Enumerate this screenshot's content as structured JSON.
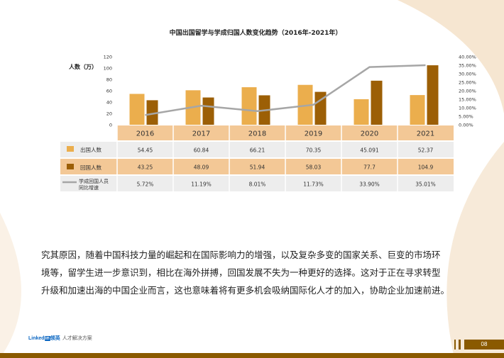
{
  "chart_data": {
    "type": "bar-line",
    "title": "中国出国留学与学成归国人数变化趋势（2016年-2021年）",
    "ylabel": "人数（万）",
    "categories": [
      "2016",
      "2017",
      "2018",
      "2019",
      "2020",
      "2021"
    ],
    "y_left": {
      "ticks": [
        "0",
        "20",
        "40",
        "60",
        "80",
        "100",
        "120"
      ],
      "range": [
        0,
        120
      ]
    },
    "y_right": {
      "ticks": [
        "0.00%",
        "5.00%",
        "10.00%",
        "15.00%",
        "20.00%",
        "25.00%",
        "30.00%",
        "35.00%",
        "40.00%"
      ],
      "range": [
        0,
        40
      ]
    },
    "series": [
      {
        "name": "出国人数",
        "type": "bar",
        "axis": "left",
        "color": "#EBAE4D",
        "values": [
          54.45,
          60.84,
          66.21,
          70.35,
          45.091,
          52.37
        ],
        "labels": [
          "54.45",
          "60.84",
          "66.21",
          "70.35",
          "45.091",
          "52.37"
        ]
      },
      {
        "name": "回国人数",
        "type": "bar",
        "axis": "left",
        "color": "#9C5F06",
        "values": [
          43.25,
          48.09,
          51.94,
          58.03,
          77.7,
          104.9
        ],
        "labels": [
          "43.25",
          "48.09",
          "51.94",
          "58.03",
          "77.7",
          "104.9"
        ]
      },
      {
        "name": "学成回国人员同比增速",
        "type": "line",
        "axis": "right",
        "color": "#A6A6A6",
        "values": [
          5.72,
          11.19,
          8.01,
          11.73,
          33.9,
          35.01
        ],
        "labels": [
          "5.72%",
          "11.19%",
          "8.01%",
          "11.73%",
          "33.90%",
          "35.01%"
        ]
      }
    ],
    "legend": "table-rows-left"
  },
  "paragraph": {
    "lines": [
      "究其原因，随着中国科技力量的崛起和在国际影响力的增强，以及复杂多变的国家关系、巨变的市场环",
      "境等，留学生进一步意识到，相比在海外拼搏，回国发展不失为一种更好的选择。这对于正在寻求转型",
      "升级和加速出海的中国企业而言，这也意味着将有更多机会吸纳国际化人才的加入，协助企业加速前进。"
    ]
  },
  "footer": {
    "logo_linked": "Linked",
    "logo_in": "in",
    "logo_cn": "领英",
    "logo_sub": "人才解决方案",
    "page_number": "08"
  },
  "colors": {
    "bar_light": "#EBAE4D",
    "bar_dark": "#9C5F06",
    "line": "#A6A6A6",
    "header_row": "#F3C896",
    "row_alt": "#EDEDED",
    "accent_brown": "#8A5A00"
  }
}
